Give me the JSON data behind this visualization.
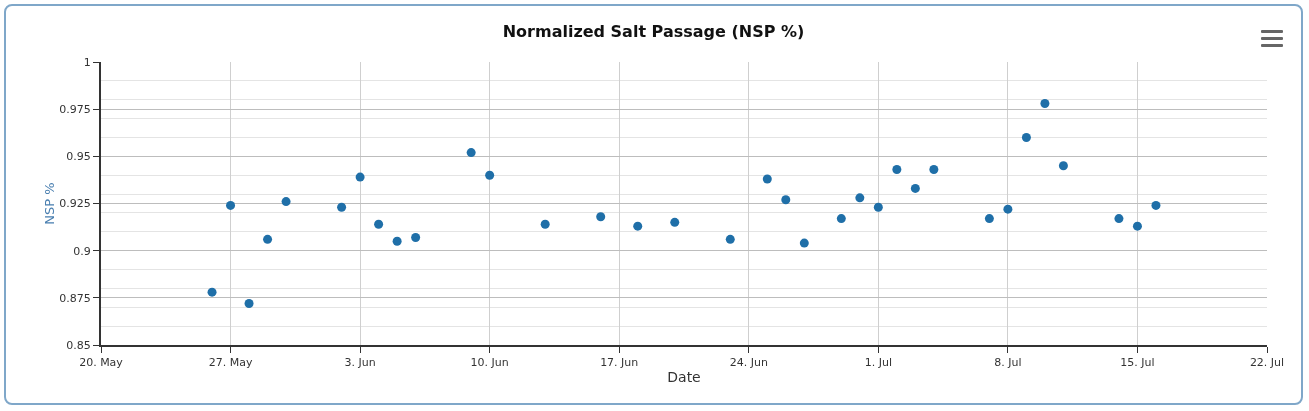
{
  "chart_data": {
    "type": "scatter",
    "title": "Normalized Salt Passage (NSP %)",
    "xlabel": "Date",
    "ylabel": "NSP %",
    "x": [
      "--05-26",
      "--05-27",
      "--05-28",
      "--05-29",
      "--05-30",
      "--06-02",
      "--06-03",
      "--06-04",
      "--06-05",
      "--06-06",
      "--06-09",
      "--06-10",
      "--06-13",
      "--06-16",
      "--06-18",
      "--06-20",
      "--06-23",
      "--06-25",
      "--06-26",
      "--06-27",
      "--06-29",
      "--06-30",
      "--07-01",
      "--07-02",
      "--07-03",
      "--07-04",
      "--07-07",
      "--07-08",
      "--07-09",
      "--07-10",
      "--07-11",
      "--07-14",
      "--07-15",
      "--07-16"
    ],
    "values": [
      0.878,
      0.924,
      0.872,
      0.906,
      0.926,
      0.923,
      0.939,
      0.914,
      0.905,
      0.907,
      0.952,
      0.94,
      0.914,
      0.918,
      0.913,
      0.915,
      0.906,
      0.938,
      0.927,
      0.904,
      0.917,
      0.928,
      0.923,
      0.943,
      0.933,
      0.943,
      0.917,
      0.922,
      0.96,
      0.978,
      0.945,
      0.917,
      0.913,
      0.924
    ],
    "color": "#1f6fa8",
    "marker": "circle",
    "grid": true,
    "xlim": [
      "--05-20",
      "--07-22"
    ],
    "xticks": [
      {
        "value": "--05-20",
        "label": "20. May"
      },
      {
        "value": "--05-27",
        "label": "27. May"
      },
      {
        "value": "--06-03",
        "label": "3. Jun"
      },
      {
        "value": "--06-10",
        "label": "10. Jun"
      },
      {
        "value": "--06-17",
        "label": "17. Jun"
      },
      {
        "value": "--06-24",
        "label": "24. Jun"
      },
      {
        "value": "--07-01",
        "label": "1. Jul"
      },
      {
        "value": "--07-08",
        "label": "8. Jul"
      },
      {
        "value": "--07-15",
        "label": "15. Jul"
      },
      {
        "value": "--07-22",
        "label": "22. Jul"
      }
    ],
    "ylim": [
      0.85,
      1
    ],
    "yticks": [
      0.85,
      0.875,
      0.9,
      0.925,
      0.95,
      0.975,
      1
    ]
  }
}
